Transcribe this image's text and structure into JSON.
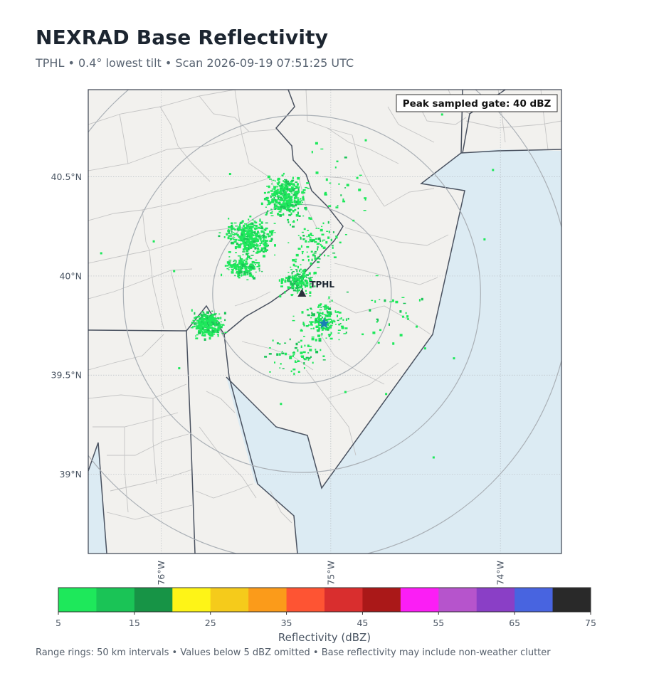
{
  "header": {
    "title": "NEXRAD Base Reflectivity",
    "subtitle": "TPHL  •  0.4° lowest tilt  •  Scan 2026-09-19 07:51:25 UTC"
  },
  "map": {
    "lon_range": [
      -76.43,
      -73.64
    ],
    "lat_range": [
      38.6,
      40.94
    ],
    "lat_ticks": [
      {
        "value": 40.5,
        "label": "40.5°N"
      },
      {
        "value": 40.0,
        "label": "40°N"
      },
      {
        "value": 39.5,
        "label": "39.5°N"
      },
      {
        "value": 39.0,
        "label": "39°N"
      }
    ],
    "lon_ticks": [
      {
        "value": -76.0,
        "label": "76°W"
      },
      {
        "value": -75.0,
        "label": "75°W"
      },
      {
        "value": -74.0,
        "label": "74°W"
      }
    ],
    "radar": {
      "id": "TPHL",
      "label": "TPHL",
      "lon": -75.17,
      "lat": 39.91,
      "marker": "triangle-marker"
    },
    "star": {
      "lon": -75.04,
      "lat": 39.76,
      "marker": "star-marker",
      "color": "#1a7fb5"
    },
    "range_rings_km": [
      50,
      100,
      150
    ],
    "peak_annotation": "Peak sampled gate: 40 dBZ",
    "colors": {
      "land": "#f2f1ee",
      "water": "#dcebf3",
      "state_border": "#4a5260",
      "county": "#c4c4c4",
      "ring": "#a9afb5"
    }
  },
  "colorbar": {
    "label": "Reflectivity (dBZ)",
    "ticks": [
      "5",
      "15",
      "25",
      "35",
      "45",
      "55",
      "65",
      "75"
    ],
    "bins": [
      {
        "from": 5,
        "to": 10,
        "color": "#1ee85b"
      },
      {
        "from": 10,
        "to": 15,
        "color": "#1ac456"
      },
      {
        "from": 15,
        "to": 20,
        "color": "#179446"
      },
      {
        "from": 20,
        "to": 25,
        "color": "#fef417"
      },
      {
        "from": 25,
        "to": 30,
        "color": "#f5cb1b"
      },
      {
        "from": 30,
        "to": 35,
        "color": "#fb9b1a"
      },
      {
        "from": 35,
        "to": 40,
        "color": "#fe5433"
      },
      {
        "from": 40,
        "to": 45,
        "color": "#d92e2e"
      },
      {
        "from": 45,
        "to": 50,
        "color": "#aa1818"
      },
      {
        "from": 50,
        "to": 55,
        "color": "#fb1ef5"
      },
      {
        "from": 55,
        "to": 60,
        "color": "#b654cc"
      },
      {
        "from": 60,
        "to": 65,
        "color": "#8a3fc6"
      },
      {
        "from": 65,
        "to": 70,
        "color": "#4864e0"
      },
      {
        "from": 70,
        "to": 75,
        "color": "#292929"
      }
    ]
  },
  "footer": {
    "note": "Range rings: 50 km intervals  •  Values below 5 dBZ omitted  •  Base reflectivity may include non-weather clutter"
  }
}
